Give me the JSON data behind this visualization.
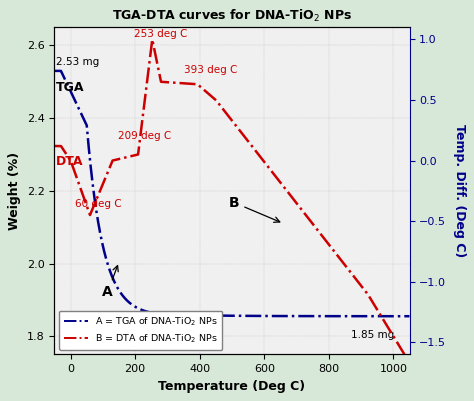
{
  "title": "TGA-DTA curves for DNA-TiO$_2$ NPs",
  "xlabel": "Temperature (Deg C)",
  "ylabel_left": "Weight (%)",
  "ylabel_right": "Temp. Diff. (Deg C)",
  "xlim": [
    -50,
    1050
  ],
  "ylim_left": [
    1.75,
    2.65
  ],
  "ylim_right": [
    -1.6,
    1.1
  ],
  "tga_color": "#00008B",
  "dta_color": "#CC0000",
  "bg_color": "#f0f0f0",
  "fig_bg": "#d8e8d8",
  "xticks": [
    0,
    200,
    400,
    600,
    800,
    1000
  ],
  "yticks_left": [
    1.8,
    2.0,
    2.2,
    2.4,
    2.6
  ],
  "yticks_right": [
    -1.5,
    -1.0,
    -0.5,
    0.0,
    0.5,
    1.0
  ]
}
